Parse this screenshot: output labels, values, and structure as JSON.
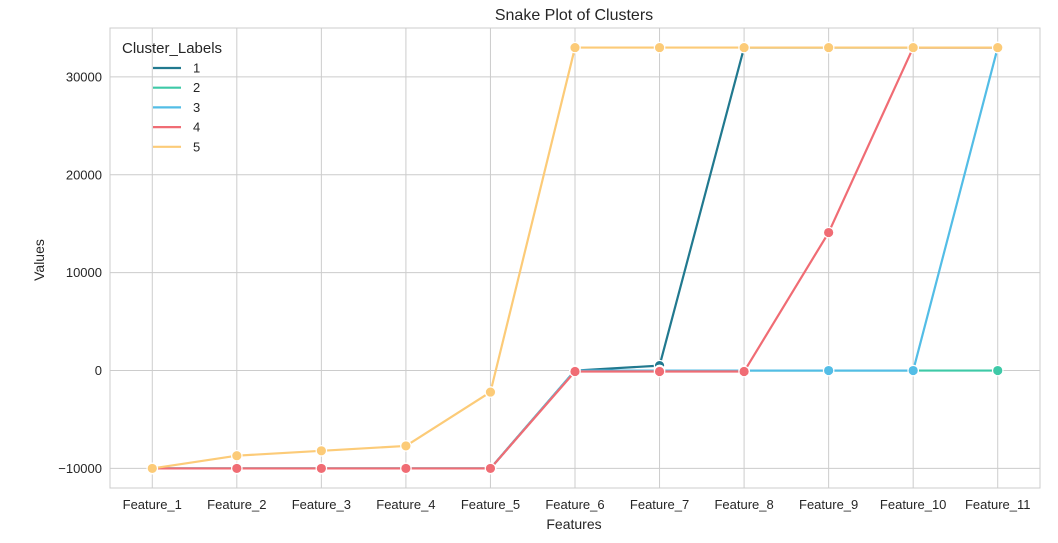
{
  "chart_data": {
    "type": "line",
    "title": "Snake Plot of Clusters",
    "xlabel": "Features",
    "ylabel": "Values",
    "categories": [
      "Feature_1",
      "Feature_2",
      "Feature_3",
      "Feature_4",
      "Feature_5",
      "Feature_6",
      "Feature_7",
      "Feature_8",
      "Feature_9",
      "Feature_10",
      "Feature_11"
    ],
    "ylim": [
      -12000,
      35000
    ],
    "yticks": [
      -10000,
      0,
      10000,
      20000,
      30000
    ],
    "ytick_labels": [
      "−10000",
      "0",
      "10000",
      "20000",
      "30000"
    ],
    "grid": true,
    "markers": true,
    "legend": {
      "title": "Cluster_Labels",
      "placement": "top-left"
    },
    "series": [
      {
        "name": "1",
        "color": "#21798f",
        "values": [
          -10000,
          -10000,
          -10000,
          -10000,
          -10000,
          0,
          500,
          33000,
          33000,
          33000,
          33000
        ]
      },
      {
        "name": "2",
        "color": "#3ec9a7",
        "values": [
          -10000,
          -10000,
          -10000,
          -10000,
          -10000,
          0,
          0,
          0,
          0,
          0,
          0
        ]
      },
      {
        "name": "3",
        "color": "#53bde6",
        "values": [
          -10000,
          -10000,
          -10000,
          -10000,
          -10000,
          0,
          0,
          0,
          0,
          0,
          33000
        ]
      },
      {
        "name": "4",
        "color": "#f06c74",
        "values": [
          -10000,
          -10000,
          -10000,
          -10000,
          -10000,
          -100,
          -100,
          -100,
          14100,
          33000,
          33000
        ]
      },
      {
        "name": "5",
        "color": "#fccb78",
        "values": [
          -10000,
          -8700,
          -8200,
          -7700,
          -2200,
          33000,
          33000,
          33000,
          33000,
          33000,
          33000
        ]
      }
    ]
  }
}
